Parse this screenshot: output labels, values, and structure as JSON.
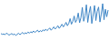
{
  "chart_data": {
    "type": "line",
    "color": "#3d85c6",
    "tick_labels": false,
    "grid": false,
    "x": [
      1,
      2,
      3,
      4,
      5,
      6,
      7,
      8,
      9,
      10,
      11,
      12,
      13,
      14,
      15,
      16,
      17,
      18,
      19,
      20,
      21,
      22,
      23,
      24,
      25,
      26,
      27,
      28,
      29,
      30,
      31,
      32,
      33,
      34,
      35,
      36,
      37,
      38,
      39,
      40,
      41,
      42,
      43,
      44,
      45,
      46,
      47,
      48,
      49,
      50,
      51,
      52,
      53,
      54,
      55,
      56,
      57,
      58,
      59,
      60,
      61,
      62,
      63,
      64,
      65,
      66,
      67,
      68,
      69,
      70,
      71,
      72,
      73,
      74,
      75,
      76,
      77,
      78,
      79,
      80
    ],
    "values": [
      15,
      13,
      14,
      12,
      16,
      14,
      11,
      13,
      15,
      12,
      14,
      10,
      13,
      16,
      12,
      15,
      18,
      14,
      17,
      15,
      19,
      16,
      20,
      17,
      22,
      18,
      21,
      24,
      19,
      23,
      20,
      25,
      22,
      27,
      23,
      26,
      30,
      24,
      28,
      33,
      27,
      31,
      36,
      29,
      34,
      40,
      33,
      38,
      45,
      36,
      42,
      55,
      40,
      48,
      62,
      45,
      52,
      70,
      44,
      58,
      85,
      48,
      62,
      92,
      45,
      70,
      88,
      42,
      66,
      90,
      50,
      75,
      86,
      46,
      68,
      95,
      52,
      80,
      60,
      78
    ],
    "xlim": [
      1,
      80
    ],
    "ylim": [
      0,
      100
    ]
  }
}
